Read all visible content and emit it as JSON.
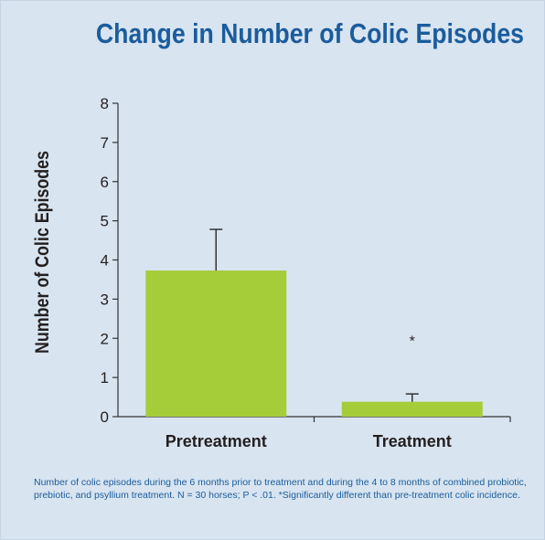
{
  "chart_data": {
    "type": "bar",
    "title": "Change in Number of Colic Episodes",
    "xlabel": "",
    "ylabel": "Number of Colic Episodes",
    "ylim": [
      0,
      8
    ],
    "yticks": [
      "0",
      "1",
      "2",
      "3",
      "4",
      "5",
      "6",
      "7",
      "8"
    ],
    "categories": [
      "Pretreatment",
      "Treatment"
    ],
    "values": [
      3.73,
      0.38
    ],
    "error_upper": [
      4.78,
      0.58
    ],
    "annotations": [
      {
        "category": "Treatment",
        "text": "*",
        "y": 2.0
      }
    ],
    "grid": false,
    "legend": "none",
    "colors": {
      "bar": "#a5cd39",
      "axis": "#333333",
      "title": "#1b5c9c",
      "caption": "#1b5c9c",
      "background": "#d8e4f0"
    }
  },
  "caption": "Number of colic episodes during the 6 months prior to treatment and during the 4 to 8 months of combined probiotic, prebiotic, and psyllium treatment. N = 30 horses; P < .01. *Significantly different than pre-treatment colic incidence."
}
